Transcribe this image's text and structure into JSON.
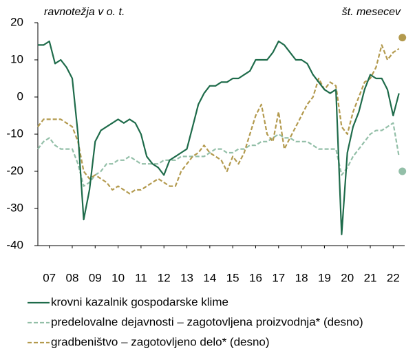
{
  "chart_data": {
    "type": "line",
    "left_label": "ravnotežja v o. t.",
    "right_label": "št. mesecev",
    "x": [
      2007,
      2007.25,
      2007.5,
      2007.75,
      2008,
      2008.25,
      2008.5,
      2008.75,
      2009,
      2009.25,
      2009.5,
      2009.75,
      2010,
      2010.25,
      2010.5,
      2010.75,
      2011,
      2011.25,
      2011.5,
      2011.75,
      2012,
      2012.25,
      2012.5,
      2012.75,
      2013,
      2013.25,
      2013.5,
      2013.75,
      2014,
      2014.25,
      2014.5,
      2014.75,
      2015,
      2015.25,
      2015.5,
      2015.75,
      2016,
      2016.25,
      2016.5,
      2016.75,
      2017,
      2017.25,
      2017.5,
      2017.75,
      2018,
      2018.25,
      2018.5,
      2018.75,
      2019,
      2019.25,
      2019.5,
      2019.75,
      2020,
      2020.25,
      2020.5,
      2020.75,
      2021,
      2021.25,
      2021.5,
      2021.75,
      2022,
      2022.25,
      2022.5,
      2022.75
    ],
    "series": [
      {
        "name": "krovni kazalnik gospodarske klime",
        "color": "#1e6b4a",
        "dash": false,
        "values": [
          14,
          14,
          15,
          9,
          10,
          8,
          5,
          -10,
          -33,
          -25,
          -12,
          -9,
          -8,
          -7,
          -6,
          -7,
          -6,
          -7,
          -10,
          -16,
          -18,
          -19,
          -21,
          -17,
          -16,
          -15,
          -14,
          -8,
          -2,
          1,
          3,
          3,
          4,
          4,
          5,
          5,
          6,
          7,
          10,
          10,
          10,
          12,
          15,
          14,
          12,
          10,
          10,
          9,
          6,
          4,
          2,
          1,
          2,
          -37,
          -15,
          -8,
          -4,
          2,
          6,
          5,
          5,
          2,
          -5,
          1
        ]
      },
      {
        "name": "predelovalne dejavnosti – zagotovljena proizvodnja* (desno)",
        "color": "#93bfa8",
        "dash": true,
        "values": [
          -14,
          -12,
          -11,
          -13,
          -14,
          -14,
          -14,
          -18,
          -24,
          -23,
          -21,
          -20,
          -18,
          -18,
          -17,
          -17,
          -16,
          -17,
          -18,
          -18,
          -18,
          -18,
          -17,
          -17,
          -17,
          -16,
          -16,
          -16,
          -16,
          -16,
          -15,
          -14,
          -14,
          -15,
          -15,
          -14,
          -14,
          -13,
          -13,
          -12,
          -12,
          -11,
          -10,
          -11,
          -11,
          -12,
          -12,
          -12,
          -13,
          -14,
          -14,
          -14,
          -14,
          -21,
          -19,
          -16,
          -14,
          -12,
          -10,
          -9,
          -9,
          -8,
          -7,
          -16
        ],
        "end_marker": {
          "x": 2022.9,
          "value": -20
        }
      },
      {
        "name": "gradbeništvo – zagotovljeno delo* (desno)",
        "color": "#b39a4e",
        "dash": true,
        "values": [
          -8,
          -6,
          -6,
          -6,
          -6,
          -7,
          -8,
          -12,
          -20,
          -22,
          -21,
          -22,
          -23,
          -25,
          -24,
          -25,
          -26,
          -25,
          -25,
          -24,
          -23,
          -22,
          -23,
          -24,
          -24,
          -20,
          -18,
          -16,
          -15,
          -13,
          -15,
          -16,
          -17,
          -20,
          -16,
          -18,
          -15,
          -10,
          -5,
          -2,
          -10,
          -12,
          -4,
          -14,
          -11,
          -8,
          -5,
          -2,
          0,
          5,
          2,
          4,
          3,
          -8,
          -10,
          -4,
          0,
          4,
          5,
          8,
          14,
          10,
          12,
          13
        ],
        "end_marker": {
          "x": 2022.9,
          "value": 16
        }
      }
    ],
    "xlim": [
      2007,
      2023
    ],
    "xticks": [
      {
        "value": 2007.5,
        "label": "07"
      },
      {
        "value": 2008.5,
        "label": "08"
      },
      {
        "value": 2009.5,
        "label": "09"
      },
      {
        "value": 2010.5,
        "label": "10"
      },
      {
        "value": 2011.5,
        "label": "11"
      },
      {
        "value": 2012.5,
        "label": "12"
      },
      {
        "value": 2013.5,
        "label": "13"
      },
      {
        "value": 2014.5,
        "label": "14"
      },
      {
        "value": 2015.5,
        "label": "15"
      },
      {
        "value": 2016.5,
        "label": "16"
      },
      {
        "value": 2017.5,
        "label": "17"
      },
      {
        "value": 2018.5,
        "label": "18"
      },
      {
        "value": 2019.5,
        "label": "19"
      },
      {
        "value": 2020.5,
        "label": "20"
      },
      {
        "value": 2021.5,
        "label": "21"
      },
      {
        "value": 2022.5,
        "label": "22"
      }
    ],
    "ylim": [
      -40,
      20
    ],
    "yticks": [
      -40,
      -30,
      -20,
      -10,
      0,
      10,
      20
    ]
  }
}
